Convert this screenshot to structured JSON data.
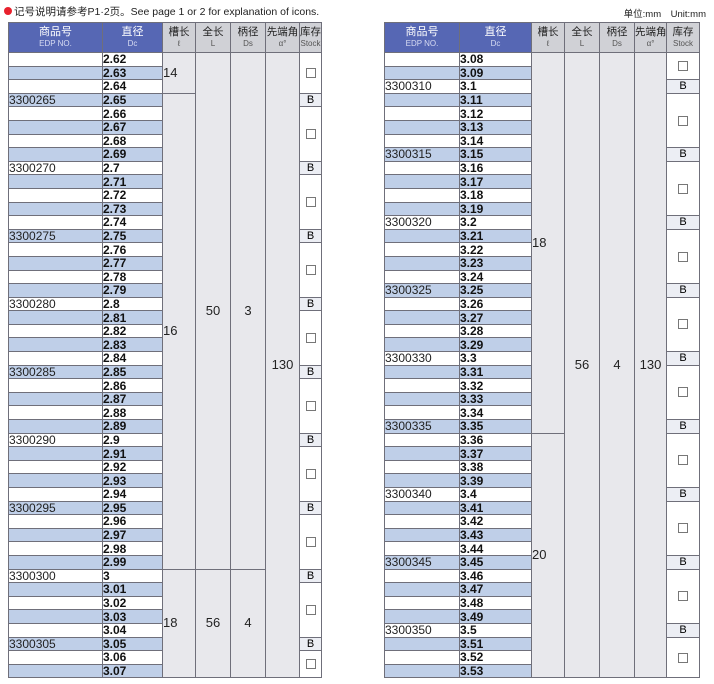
{
  "header": {
    "note": "记号说明请参考P1·2页。See page 1 or 2 for explanation of icons.",
    "unit": "单位:mm　Unit:mm"
  },
  "columns": {
    "edp": {
      "zh": "商品号",
      "en": "EDP NO."
    },
    "dc": {
      "zh": "直径",
      "en": "Dc"
    },
    "flute": {
      "zh": "槽长",
      "en": "ℓ"
    },
    "length": {
      "zh": "全长",
      "en": "L"
    },
    "shank": {
      "zh": "柄径",
      "en": "Ds"
    },
    "angle": {
      "zh": "先端角",
      "en": "α°"
    },
    "stock": {
      "zh": "库存",
      "en": "Stock"
    }
  },
  "stock_icons": {
    "available": "B",
    "empty": "stock-checkbox-icon"
  },
  "colors": {
    "header_blue": "#5667b4",
    "row_shade": "#bfcfe8",
    "bullet": "#e8212d"
  },
  "tables": [
    {
      "rows": [
        {
          "edp": "",
          "dc": "2.62"
        },
        {
          "edp": "",
          "dc": "2.63"
        },
        {
          "edp": "",
          "dc": "2.64"
        },
        {
          "edp": "3300265",
          "dc": "2.65"
        },
        {
          "edp": "",
          "dc": "2.66"
        },
        {
          "edp": "",
          "dc": "2.67"
        },
        {
          "edp": "",
          "dc": "2.68"
        },
        {
          "edp": "",
          "dc": "2.69"
        },
        {
          "edp": "3300270",
          "dc": "2.7"
        },
        {
          "edp": "",
          "dc": "2.71"
        },
        {
          "edp": "",
          "dc": "2.72"
        },
        {
          "edp": "",
          "dc": "2.73"
        },
        {
          "edp": "",
          "dc": "2.74"
        },
        {
          "edp": "3300275",
          "dc": "2.75"
        },
        {
          "edp": "",
          "dc": "2.76"
        },
        {
          "edp": "",
          "dc": "2.77"
        },
        {
          "edp": "",
          "dc": "2.78"
        },
        {
          "edp": "",
          "dc": "2.79"
        },
        {
          "edp": "3300280",
          "dc": "2.8"
        },
        {
          "edp": "",
          "dc": "2.81"
        },
        {
          "edp": "",
          "dc": "2.82"
        },
        {
          "edp": "",
          "dc": "2.83"
        },
        {
          "edp": "",
          "dc": "2.84"
        },
        {
          "edp": "3300285",
          "dc": "2.85"
        },
        {
          "edp": "",
          "dc": "2.86"
        },
        {
          "edp": "",
          "dc": "2.87"
        },
        {
          "edp": "",
          "dc": "2.88"
        },
        {
          "edp": "",
          "dc": "2.89"
        },
        {
          "edp": "3300290",
          "dc": "2.9"
        },
        {
          "edp": "",
          "dc": "2.91"
        },
        {
          "edp": "",
          "dc": "2.92"
        },
        {
          "edp": "",
          "dc": "2.93"
        },
        {
          "edp": "",
          "dc": "2.94"
        },
        {
          "edp": "3300295",
          "dc": "2.95"
        },
        {
          "edp": "",
          "dc": "2.96"
        },
        {
          "edp": "",
          "dc": "2.97"
        },
        {
          "edp": "",
          "dc": "2.98"
        },
        {
          "edp": "",
          "dc": "2.99"
        },
        {
          "edp": "3300300",
          "dc": "3"
        },
        {
          "edp": "",
          "dc": "3.01"
        },
        {
          "edp": "",
          "dc": "3.02"
        },
        {
          "edp": "",
          "dc": "3.03"
        },
        {
          "edp": "",
          "dc": "3.04"
        },
        {
          "edp": "3300305",
          "dc": "3.05"
        },
        {
          "edp": "",
          "dc": "3.06"
        },
        {
          "edp": "",
          "dc": "3.07"
        }
      ],
      "flute_groups": [
        {
          "value": "14",
          "rows": 3
        },
        {
          "value": "16",
          "rows": 35
        },
        {
          "value": "18",
          "rows": 8
        }
      ],
      "length_groups": [
        {
          "value": "50",
          "rows": 38
        },
        {
          "value": "56",
          "rows": 8
        }
      ],
      "shank_groups": [
        {
          "value": "3",
          "rows": 38
        },
        {
          "value": "4",
          "rows": 8
        }
      ],
      "angle_groups": [
        {
          "value": "130",
          "rows": 46
        }
      ],
      "stock_groups": [
        {
          "value": "",
          "rows": 3
        },
        {
          "value": "B",
          "rows": 1
        },
        {
          "value": "",
          "rows": 4
        },
        {
          "value": "B",
          "rows": 1
        },
        {
          "value": "",
          "rows": 4
        },
        {
          "value": "B",
          "rows": 1
        },
        {
          "value": "",
          "rows": 4
        },
        {
          "value": "B",
          "rows": 1
        },
        {
          "value": "",
          "rows": 4
        },
        {
          "value": "B",
          "rows": 1
        },
        {
          "value": "",
          "rows": 4
        },
        {
          "value": "B",
          "rows": 1
        },
        {
          "value": "",
          "rows": 4
        },
        {
          "value": "B",
          "rows": 1
        },
        {
          "value": "",
          "rows": 4
        },
        {
          "value": "B",
          "rows": 1
        },
        {
          "value": "",
          "rows": 4
        },
        {
          "value": "B",
          "rows": 1
        },
        {
          "value": "",
          "rows": 2
        }
      ]
    },
    {
      "rows": [
        {
          "edp": "",
          "dc": "3.08"
        },
        {
          "edp": "",
          "dc": "3.09"
        },
        {
          "edp": "3300310",
          "dc": "3.1"
        },
        {
          "edp": "",
          "dc": "3.11"
        },
        {
          "edp": "",
          "dc": "3.12"
        },
        {
          "edp": "",
          "dc": "3.13"
        },
        {
          "edp": "",
          "dc": "3.14"
        },
        {
          "edp": "3300315",
          "dc": "3.15"
        },
        {
          "edp": "",
          "dc": "3.16"
        },
        {
          "edp": "",
          "dc": "3.17"
        },
        {
          "edp": "",
          "dc": "3.18"
        },
        {
          "edp": "",
          "dc": "3.19"
        },
        {
          "edp": "3300320",
          "dc": "3.2"
        },
        {
          "edp": "",
          "dc": "3.21"
        },
        {
          "edp": "",
          "dc": "3.22"
        },
        {
          "edp": "",
          "dc": "3.23"
        },
        {
          "edp": "",
          "dc": "3.24"
        },
        {
          "edp": "3300325",
          "dc": "3.25"
        },
        {
          "edp": "",
          "dc": "3.26"
        },
        {
          "edp": "",
          "dc": "3.27"
        },
        {
          "edp": "",
          "dc": "3.28"
        },
        {
          "edp": "",
          "dc": "3.29"
        },
        {
          "edp": "3300330",
          "dc": "3.3"
        },
        {
          "edp": "",
          "dc": "3.31"
        },
        {
          "edp": "",
          "dc": "3.32"
        },
        {
          "edp": "",
          "dc": "3.33"
        },
        {
          "edp": "",
          "dc": "3.34"
        },
        {
          "edp": "3300335",
          "dc": "3.35"
        },
        {
          "edp": "",
          "dc": "3.36"
        },
        {
          "edp": "",
          "dc": "3.37"
        },
        {
          "edp": "",
          "dc": "3.38"
        },
        {
          "edp": "",
          "dc": "3.39"
        },
        {
          "edp": "3300340",
          "dc": "3.4"
        },
        {
          "edp": "",
          "dc": "3.41"
        },
        {
          "edp": "",
          "dc": "3.42"
        },
        {
          "edp": "",
          "dc": "3.43"
        },
        {
          "edp": "",
          "dc": "3.44"
        },
        {
          "edp": "3300345",
          "dc": "3.45"
        },
        {
          "edp": "",
          "dc": "3.46"
        },
        {
          "edp": "",
          "dc": "3.47"
        },
        {
          "edp": "",
          "dc": "3.48"
        },
        {
          "edp": "",
          "dc": "3.49"
        },
        {
          "edp": "3300350",
          "dc": "3.5"
        },
        {
          "edp": "",
          "dc": "3.51"
        },
        {
          "edp": "",
          "dc": "3.52"
        },
        {
          "edp": "",
          "dc": "3.53"
        }
      ],
      "flute_groups": [
        {
          "value": "18",
          "rows": 28
        },
        {
          "value": "20",
          "rows": 18
        }
      ],
      "length_groups": [
        {
          "value": "56",
          "rows": 46
        }
      ],
      "shank_groups": [
        {
          "value": "4",
          "rows": 46
        }
      ],
      "angle_groups": [
        {
          "value": "130",
          "rows": 46
        }
      ],
      "stock_groups": [
        {
          "value": "",
          "rows": 2
        },
        {
          "value": "B",
          "rows": 1
        },
        {
          "value": "",
          "rows": 4
        },
        {
          "value": "B",
          "rows": 1
        },
        {
          "value": "",
          "rows": 4
        },
        {
          "value": "B",
          "rows": 1
        },
        {
          "value": "",
          "rows": 4
        },
        {
          "value": "B",
          "rows": 1
        },
        {
          "value": "",
          "rows": 4
        },
        {
          "value": "B",
          "rows": 1
        },
        {
          "value": "",
          "rows": 4
        },
        {
          "value": "B",
          "rows": 1
        },
        {
          "value": "",
          "rows": 4
        },
        {
          "value": "B",
          "rows": 1
        },
        {
          "value": "",
          "rows": 4
        },
        {
          "value": "B",
          "rows": 1
        },
        {
          "value": "",
          "rows": 4
        },
        {
          "value": "B",
          "rows": 1
        },
        {
          "value": "",
          "rows": 3
        }
      ]
    }
  ]
}
